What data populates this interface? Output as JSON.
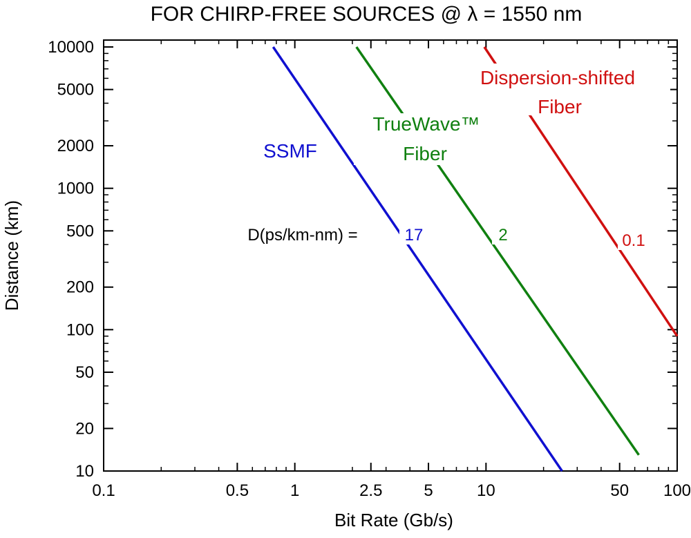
{
  "chart_data": {
    "type": "line",
    "title": "FOR CHIRP-FREE SOURCES @ λ = 1550 nm",
    "xlabel": "Bit Rate (Gb/s)",
    "ylabel": "Distance (km)",
    "xscale": "log",
    "yscale": "log",
    "xlim": [
      0.1,
      100
    ],
    "ylim": [
      10,
      10000
    ],
    "xticks": [
      0.1,
      0.5,
      1,
      2.5,
      5,
      10,
      50,
      100
    ],
    "xtick_labels": [
      "0.1",
      "0.5",
      "1",
      "2.5",
      "5",
      "10",
      "50",
      "100"
    ],
    "yticks": [
      10,
      20,
      50,
      100,
      200,
      500,
      1000,
      2000,
      5000,
      10000
    ],
    "ytick_labels": [
      "10",
      "20",
      "50",
      "100",
      "200",
      "500",
      "1000",
      "2000",
      "5000",
      "10000"
    ],
    "d_label": "D(ps/km-nm) =",
    "series": [
      {
        "name": "SSMF",
        "d_value": "17",
        "color": "#1010d0",
        "x": [
          0.77,
          25
        ],
        "y": [
          10000,
          10
        ]
      },
      {
        "name_lines": [
          "TrueWave™",
          "Fiber"
        ],
        "d_value": "2",
        "color": "#108010",
        "x": [
          2.1,
          63
        ],
        "y": [
          10000,
          13
        ]
      },
      {
        "name_lines": [
          "Dispersion-shifted",
          "Fiber"
        ],
        "d_value": "0.1",
        "color": "#d01010",
        "x": [
          9.8,
          100
        ],
        "y": [
          10000,
          90
        ]
      }
    ]
  }
}
